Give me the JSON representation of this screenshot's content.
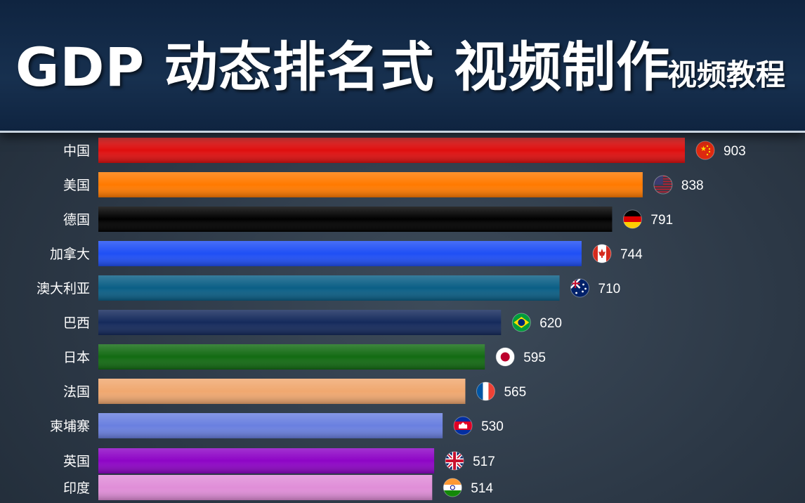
{
  "header": {
    "title": "GDP 动态排名式 视频制作",
    "subtitle": "视频教程"
  },
  "chart_data": {
    "type": "bar",
    "orientation": "horizontal",
    "categories": [
      "中国",
      "美国",
      "德国",
      "加拿大",
      "澳大利亚",
      "巴西",
      "日本",
      "法国",
      "柬埔寨",
      "英国",
      "印度"
    ],
    "values": [
      903,
      838,
      791,
      744,
      710,
      620,
      595,
      565,
      530,
      517,
      514
    ],
    "flag_icons": [
      "china-flag-icon",
      "usa-flag-icon",
      "germany-flag-icon",
      "canada-flag-icon",
      "australia-flag-icon",
      "brazil-flag-icon",
      "japan-flag-icon",
      "france-flag-icon",
      "cambodia-flag-icon",
      "uk-flag-icon",
      "india-flag-icon"
    ],
    "colors": [
      "#e01010",
      "#ff7a00",
      "#000000",
      "#1f4ff5",
      "#0b5f86",
      "#152a5c",
      "#136b13",
      "#f0a870",
      "#6a80e0",
      "#8e05c6",
      "#e08ed8"
    ],
    "xlim": [
      0,
      903
    ],
    "grid": false,
    "legend": "none"
  }
}
